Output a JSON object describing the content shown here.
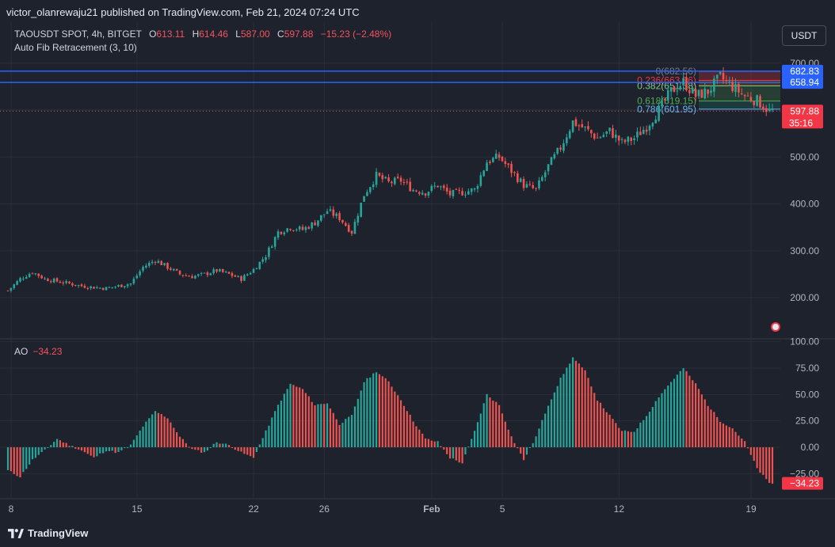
{
  "header": {
    "published": "victor_olanrewaju21 published on TradingView.com, Feb 21, 2024 07:24 UTC"
  },
  "symbol": {
    "name": "TAOUSDT SPOT, 4h, BITGET",
    "open_label": "O",
    "open": "613.11",
    "high_label": "H",
    "high": "614.46",
    "low_label": "L",
    "low": "587.00",
    "close_label": "C",
    "close": "597.88",
    "change": "−15.23 (−2.48%)"
  },
  "indicator": {
    "fib": "Auto Fib Retracement (3, 10)"
  },
  "ao": {
    "label": "AO",
    "value": "−34.23"
  },
  "currency_button": "USDT",
  "footer": {
    "brand": "TradingView"
  },
  "colors": {
    "up": "#26a69a",
    "down": "#ef5350",
    "background": "#1e222d",
    "grid": "#2a2e39",
    "fib_line": "#2962ff"
  },
  "chart_data": [
    {
      "type": "candlestick",
      "title": "TAOUSDT SPOT, 4h, BITGET",
      "y_axis": {
        "ticks": [
          "700.00",
          "600.00",
          "500.00",
          "400.00",
          "300.00",
          "200.00"
        ],
        "ylim": [
          130,
          720
        ]
      },
      "x_axis": {
        "ticks": [
          "8",
          "15",
          "22",
          "26",
          "Feb",
          "5",
          "12",
          "19"
        ]
      },
      "price_markers": [
        {
          "label": "682.83",
          "value": 682.83
        },
        {
          "label": "658.94",
          "value": 658.94
        },
        {
          "label": "597.88",
          "value": 597.88,
          "countdown": "35:16"
        }
      ],
      "fib_levels": [
        {
          "label": "0(682.56)",
          "value": 682.56
        },
        {
          "label": "0.236(663.36)",
          "value": 663.36
        },
        {
          "label": "0.382(651.38)",
          "value": 651.38
        },
        {
          "label": "0.618(619.15)",
          "value": 619.15
        },
        {
          "label": "0.786(601.95)",
          "value": 601.95
        }
      ],
      "close_path": [
        [
          0,
          215
        ],
        [
          4,
          240
        ],
        [
          8,
          255
        ],
        [
          12,
          240
        ],
        [
          16,
          235
        ],
        [
          20,
          230
        ],
        [
          24,
          225
        ],
        [
          28,
          222
        ],
        [
          32,
          220
        ],
        [
          36,
          225
        ],
        [
          40,
          230
        ],
        [
          44,
          265
        ],
        [
          48,
          280
        ],
        [
          52,
          265
        ],
        [
          56,
          250
        ],
        [
          60,
          245
        ],
        [
          64,
          250
        ],
        [
          68,
          258
        ],
        [
          72,
          250
        ],
        [
          76,
          240
        ],
        [
          80,
          260
        ],
        [
          84,
          290
        ],
        [
          88,
          340
        ],
        [
          92,
          350
        ],
        [
          96,
          345
        ],
        [
          100,
          360
        ],
        [
          104,
          385
        ],
        [
          108,
          370
        ],
        [
          112,
          340
        ],
        [
          116,
          420
        ],
        [
          120,
          460
        ],
        [
          124,
          445
        ],
        [
          128,
          450
        ],
        [
          132,
          430
        ],
        [
          136,
          425
        ],
        [
          140,
          440
        ],
        [
          144,
          420
        ],
        [
          148,
          425
        ],
        [
          152,
          430
        ],
        [
          156,
          490
        ],
        [
          160,
          500
        ],
        [
          164,
          470
        ],
        [
          168,
          440
        ],
        [
          172,
          430
        ],
        [
          176,
          480
        ],
        [
          180,
          520
        ],
        [
          184,
          575
        ],
        [
          188,
          560
        ],
        [
          192,
          540
        ],
        [
          196,
          555
        ],
        [
          200,
          530
        ],
        [
          204,
          540
        ],
        [
          208,
          565
        ],
        [
          212,
          600
        ],
        [
          216,
          640
        ],
        [
          220,
          660
        ],
        [
          224,
          630
        ],
        [
          228,
          640
        ],
        [
          232,
          670
        ],
        [
          236,
          650
        ],
        [
          240,
          630
        ],
        [
          244,
          620
        ],
        [
          248,
          597.88
        ]
      ]
    },
    {
      "type": "bar",
      "title": "AO",
      "y_axis": {
        "ticks": [
          "100.00",
          "75.00",
          "50.00",
          "25.00",
          "0.00",
          "−25.00"
        ],
        "ylim": [
          -38,
          100
        ]
      },
      "value_marker": "−34.23",
      "ao_path": [
        [
          0,
          -22
        ],
        [
          4,
          -28
        ],
        [
          8,
          -12
        ],
        [
          12,
          -3
        ],
        [
          16,
          8
        ],
        [
          20,
          2
        ],
        [
          24,
          -3
        ],
        [
          28,
          -10
        ],
        [
          32,
          -3
        ],
        [
          36,
          -5
        ],
        [
          40,
          2
        ],
        [
          44,
          20
        ],
        [
          48,
          34
        ],
        [
          52,
          28
        ],
        [
          56,
          10
        ],
        [
          60,
          -2
        ],
        [
          64,
          -5
        ],
        [
          68,
          5
        ],
        [
          72,
          2
        ],
        [
          76,
          -5
        ],
        [
          80,
          -10
        ],
        [
          84,
          15
        ],
        [
          88,
          40
        ],
        [
          92,
          60
        ],
        [
          96,
          55
        ],
        [
          100,
          40
        ],
        [
          104,
          42
        ],
        [
          108,
          22
        ],
        [
          112,
          30
        ],
        [
          116,
          62
        ],
        [
          120,
          72
        ],
        [
          124,
          62
        ],
        [
          128,
          45
        ],
        [
          132,
          25
        ],
        [
          136,
          8
        ],
        [
          140,
          5
        ],
        [
          144,
          -10
        ],
        [
          148,
          -15
        ],
        [
          152,
          15
        ],
        [
          156,
          50
        ],
        [
          160,
          40
        ],
        [
          164,
          10
        ],
        [
          168,
          -12
        ],
        [
          172,
          10
        ],
        [
          176,
          40
        ],
        [
          180,
          65
        ],
        [
          184,
          85
        ],
        [
          188,
          72
        ],
        [
          192,
          45
        ],
        [
          196,
          30
        ],
        [
          200,
          15
        ],
        [
          204,
          15
        ],
        [
          208,
          30
        ],
        [
          212,
          48
        ],
        [
          216,
          62
        ],
        [
          220,
          75
        ],
        [
          224,
          60
        ],
        [
          228,
          40
        ],
        [
          232,
          25
        ],
        [
          236,
          18
        ],
        [
          240,
          5
        ],
        [
          244,
          -20
        ],
        [
          248,
          -34.23
        ]
      ]
    }
  ]
}
